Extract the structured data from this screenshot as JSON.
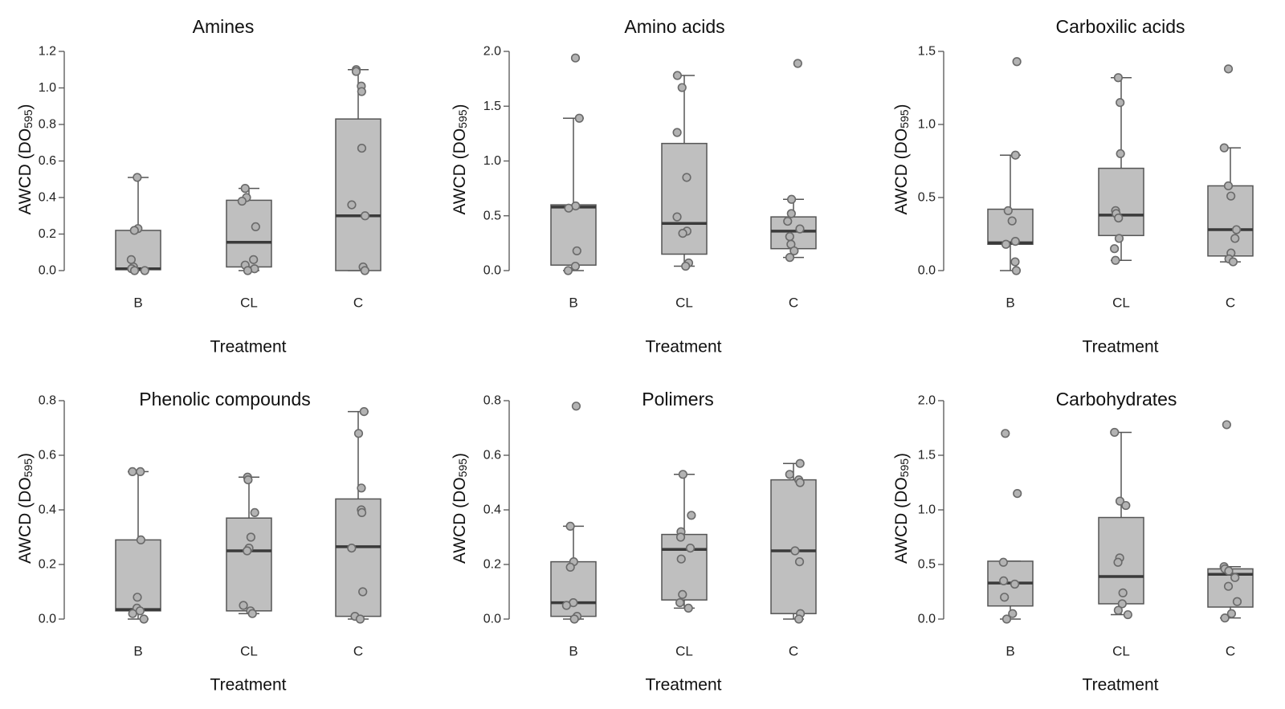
{
  "figure": {
    "ylabel_main": "AWCD (DO",
    "ylabel_sub": "595",
    "ylabel_close": ")",
    "xlabel": "Treatment"
  },
  "chart_data": [
    {
      "type": "box",
      "title": "Amines",
      "xlabel": "Treatment",
      "ylabel": "AWCD (DO595)",
      "categories": [
        "B",
        "CL",
        "C"
      ],
      "ylim": [
        0,
        1.2
      ],
      "yticks": [
        "0.0",
        "0.2",
        "0.4",
        "0.6",
        "0.8",
        "1.0",
        "1.2"
      ],
      "ytick_values": [
        0,
        0.2,
        0.4,
        0.6,
        0.8,
        1.0,
        1.2
      ],
      "boxes": [
        {
          "min": 0.0,
          "q1": 0.005,
          "median": 0.01,
          "q3": 0.22,
          "max": 0.51
        },
        {
          "min": 0.0,
          "q1": 0.02,
          "median": 0.155,
          "q3": 0.385,
          "max": 0.45
        },
        {
          "min": 0.0,
          "q1": 0.0,
          "median": 0.3,
          "q3": 0.83,
          "max": 1.1
        }
      ],
      "points": [
        [
          0.51,
          0.23,
          0.22,
          0.06,
          0.02,
          0.01,
          0.0,
          0.0
        ],
        [
          0.45,
          0.4,
          0.38,
          0.24,
          0.06,
          0.03,
          0.01,
          0.0
        ],
        [
          1.1,
          1.09,
          1.01,
          0.98,
          0.67,
          0.36,
          0.3,
          0.02,
          0.0
        ]
      ]
    },
    {
      "type": "box",
      "title": "Amino acids",
      "xlabel": "Treatment",
      "ylabel": "AWCD (DO595)",
      "categories": [
        "B",
        "CL",
        "C"
      ],
      "ylim": [
        0,
        2.0
      ],
      "yticks": [
        "0.0",
        "0.5",
        "1.0",
        "1.5",
        "2.0"
      ],
      "ytick_values": [
        0,
        0.5,
        1.0,
        1.5,
        2.0
      ],
      "boxes": [
        {
          "min": 0.0,
          "q1": 0.05,
          "median": 0.58,
          "q3": 0.6,
          "max": 1.39
        },
        {
          "min": 0.04,
          "q1": 0.15,
          "median": 0.43,
          "q3": 1.16,
          "max": 1.78
        },
        {
          "min": 0.12,
          "q1": 0.2,
          "median": 0.36,
          "q3": 0.49,
          "max": 0.65
        }
      ],
      "points": [
        [
          1.94,
          1.39,
          0.59,
          0.57,
          0.18,
          0.04,
          0.0
        ],
        [
          1.78,
          1.67,
          1.26,
          0.85,
          0.49,
          0.36,
          0.34,
          0.07,
          0.04
        ],
        [
          1.89,
          0.65,
          0.52,
          0.45,
          0.38,
          0.31,
          0.24,
          0.18,
          0.12
        ]
      ]
    },
    {
      "type": "box",
      "title": "Carboxilic acids",
      "xlabel": "Treatment",
      "ylabel": "AWCD (DO595)",
      "categories": [
        "B",
        "CL",
        "C"
      ],
      "ylim": [
        0,
        1.5
      ],
      "yticks": [
        "0.0",
        "0.5",
        "1.0",
        "1.5"
      ],
      "ytick_values": [
        0,
        0.5,
        1.0,
        1.5
      ],
      "boxes": [
        {
          "min": 0.0,
          "q1": 0.18,
          "median": 0.19,
          "q3": 0.42,
          "max": 0.79
        },
        {
          "min": 0.07,
          "q1": 0.24,
          "median": 0.38,
          "q3": 0.7,
          "max": 1.32
        },
        {
          "min": 0.06,
          "q1": 0.1,
          "median": 0.28,
          "q3": 0.58,
          "max": 0.84
        }
      ],
      "points": [
        [
          1.43,
          0.79,
          0.41,
          0.34,
          0.2,
          0.18,
          0.06,
          0.0
        ],
        [
          1.32,
          1.15,
          0.8,
          0.41,
          0.39,
          0.36,
          0.22,
          0.15,
          0.07
        ],
        [
          1.38,
          0.84,
          0.58,
          0.51,
          0.28,
          0.22,
          0.12,
          0.08,
          0.06
        ]
      ]
    },
    {
      "type": "box",
      "title": "Phenolic compounds",
      "xlabel": "Treatment",
      "ylabel": "AWCD (DO595)",
      "categories": [
        "B",
        "CL",
        "C"
      ],
      "ylim": [
        0,
        0.8
      ],
      "yticks": [
        "0.0",
        "0.2",
        "0.4",
        "0.6",
        "0.8"
      ],
      "ytick_values": [
        0,
        0.2,
        0.4,
        0.6,
        0.8
      ],
      "boxes": [
        {
          "min": 0.0,
          "q1": 0.03,
          "median": 0.035,
          "q3": 0.29,
          "max": 0.54
        },
        {
          "min": 0.02,
          "q1": 0.03,
          "median": 0.25,
          "q3": 0.37,
          "max": 0.52
        },
        {
          "min": 0.0,
          "q1": 0.01,
          "median": 0.265,
          "q3": 0.44,
          "max": 0.76
        }
      ],
      "points": [
        [
          0.54,
          0.54,
          0.29,
          0.08,
          0.04,
          0.03,
          0.02,
          0.0
        ],
        [
          0.52,
          0.51,
          0.39,
          0.3,
          0.26,
          0.25,
          0.05,
          0.03,
          0.02
        ],
        [
          0.76,
          0.68,
          0.48,
          0.4,
          0.39,
          0.26,
          0.1,
          0.01,
          0.0
        ]
      ]
    },
    {
      "type": "box",
      "title": "Polimers",
      "xlabel": "Treatment",
      "ylabel": "AWCD (DO595)",
      "categories": [
        "B",
        "CL",
        "C"
      ],
      "ylim": [
        0,
        0.8
      ],
      "yticks": [
        "0.0",
        "0.2",
        "0.4",
        "0.6",
        "0.8"
      ],
      "ytick_values": [
        0,
        0.2,
        0.4,
        0.6,
        0.8
      ],
      "boxes": [
        {
          "min": 0.0,
          "q1": 0.01,
          "median": 0.06,
          "q3": 0.21,
          "max": 0.34
        },
        {
          "min": 0.04,
          "q1": 0.07,
          "median": 0.255,
          "q3": 0.31,
          "max": 0.53
        },
        {
          "min": 0.0,
          "q1": 0.02,
          "median": 0.25,
          "q3": 0.51,
          "max": 0.57
        }
      ],
      "points": [
        [
          0.78,
          0.34,
          0.21,
          0.19,
          0.06,
          0.05,
          0.01,
          0.0
        ],
        [
          0.53,
          0.38,
          0.32,
          0.3,
          0.26,
          0.22,
          0.09,
          0.06,
          0.04
        ],
        [
          0.57,
          0.53,
          0.51,
          0.5,
          0.25,
          0.21,
          0.02,
          0.0
        ]
      ]
    },
    {
      "type": "box",
      "title": "Carbohydrates",
      "xlabel": "Treatment",
      "ylabel": "AWCD (DO595)",
      "categories": [
        "B",
        "CL",
        "C"
      ],
      "ylim": [
        0,
        2.0
      ],
      "yticks": [
        "0.0",
        "0.5",
        "1.0",
        "1.5",
        "2.0"
      ],
      "ytick_values": [
        0,
        0.5,
        1.0,
        1.5,
        2.0
      ],
      "boxes": [
        {
          "min": 0.0,
          "q1": 0.12,
          "median": 0.33,
          "q3": 0.53,
          "max": 0.53
        },
        {
          "min": 0.04,
          "q1": 0.14,
          "median": 0.39,
          "q3": 0.93,
          "max": 1.71
        },
        {
          "min": 0.01,
          "q1": 0.11,
          "median": 0.41,
          "q3": 0.46,
          "max": 0.48
        }
      ],
      "points": [
        [
          1.7,
          1.15,
          0.52,
          0.35,
          0.32,
          0.2,
          0.05,
          0.0
        ],
        [
          1.71,
          1.08,
          1.04,
          0.56,
          0.52,
          0.24,
          0.14,
          0.08,
          0.04
        ],
        [
          1.78,
          0.48,
          0.46,
          0.44,
          0.38,
          0.3,
          0.16,
          0.05,
          0.01
        ]
      ]
    }
  ]
}
